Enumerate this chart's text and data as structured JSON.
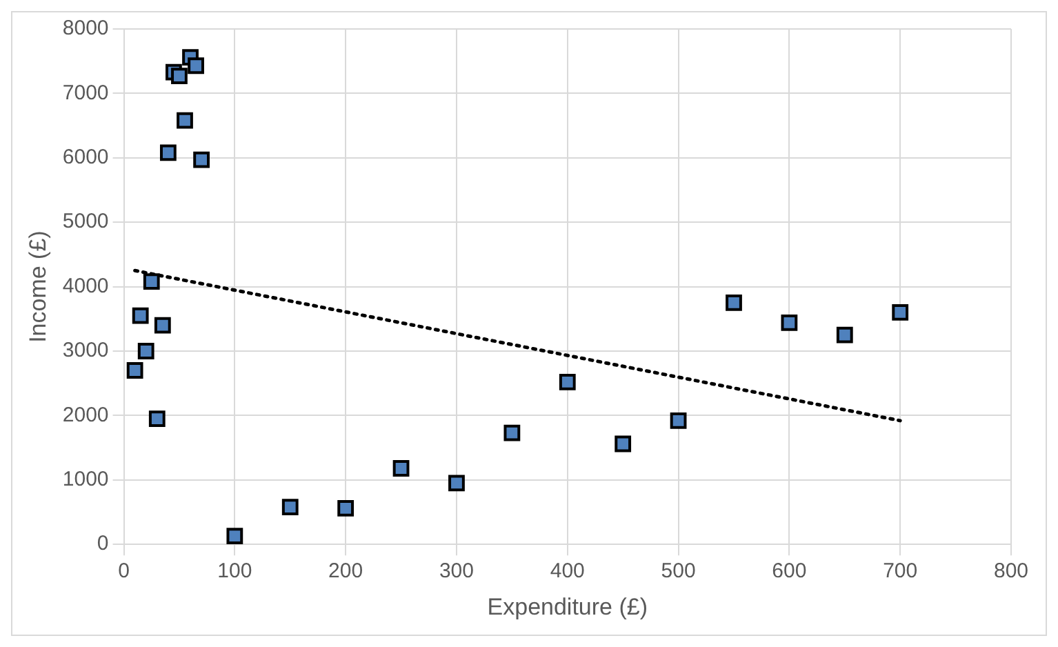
{
  "chart_data": {
    "type": "scatter",
    "xlabel": "Expenditure (£)",
    "ylabel": "Income (£)",
    "xlim": [
      0,
      800
    ],
    "xticks": [
      0,
      100,
      200,
      300,
      400,
      500,
      600,
      700,
      800
    ],
    "ylim": [
      0,
      8000
    ],
    "yticks": [
      0,
      1000,
      2000,
      3000,
      4000,
      5000,
      6000,
      7000,
      8000
    ],
    "grid": true,
    "legend": false,
    "marker": "square",
    "series": [
      {
        "type": "scatter",
        "color": "#4f81bd",
        "x": [
          10,
          15,
          20,
          25,
          30,
          35,
          40,
          45,
          50,
          55,
          60,
          65,
          70,
          100,
          150,
          200,
          250,
          300,
          350,
          400,
          450,
          500,
          550,
          600,
          650,
          700
        ],
        "values": [
          2700,
          3550,
          3000,
          4080,
          1950,
          3400,
          6080,
          7330,
          7270,
          6580,
          7560,
          7430,
          5970,
          130,
          580,
          560,
          1180,
          950,
          1730,
          2520,
          1560,
          1920,
          3750,
          3440,
          3250,
          3600
        ]
      },
      {
        "type": "line",
        "color": "#000000",
        "marker": "none",
        "line_style": "dotted",
        "x": [
          10,
          700
        ],
        "values": [
          4250,
          1920
        ]
      }
    ]
  }
}
